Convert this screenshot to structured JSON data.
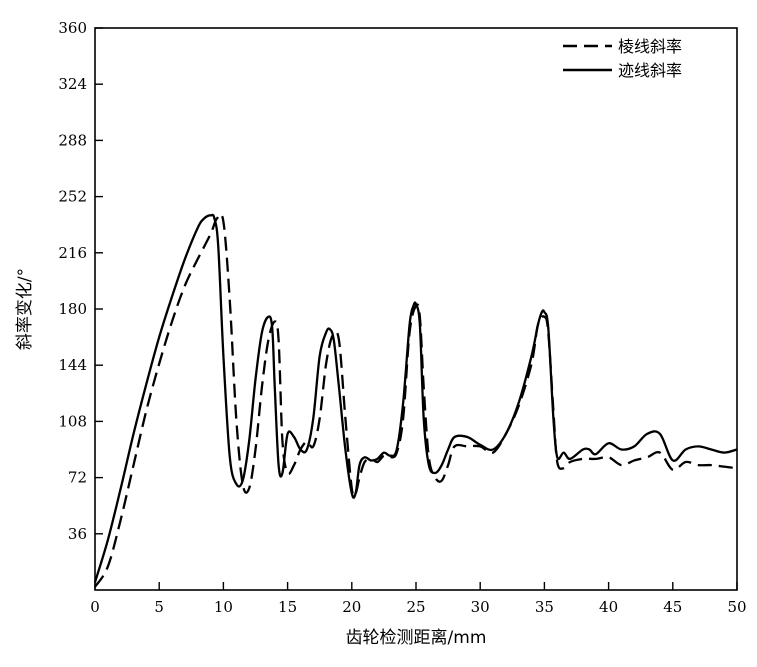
{
  "chart_data": {
    "type": "line",
    "xlabel": "齿轮检测距离/mm",
    "ylabel": "斜率变化/°",
    "xlim": [
      0,
      50
    ],
    "ylim": [
      0,
      360
    ],
    "xticks": [
      0,
      5,
      10,
      15,
      20,
      25,
      30,
      35,
      40,
      45,
      50
    ],
    "yticks": [
      36,
      72,
      108,
      144,
      180,
      216,
      252,
      288,
      324,
      360
    ],
    "grid": false,
    "legend_position": "top-right",
    "series": [
      {
        "name": "棱线斜率",
        "style": "dashed",
        "color": "#000000",
        "x": [
          0,
          1,
          2,
          3,
          4,
          5,
          6,
          7,
          8,
          9,
          9.5,
          10,
          10.5,
          11,
          11.5,
          12,
          12.5,
          13,
          13.5,
          14,
          14.3,
          14.6,
          15,
          15.5,
          16,
          16.5,
          17,
          17.5,
          18,
          18.5,
          19,
          19.5,
          20,
          20.3,
          20.6,
          21,
          21.5,
          22,
          22.5,
          23,
          23.5,
          24,
          24.5,
          25,
          25.3,
          25.6,
          26,
          26.5,
          27,
          27.5,
          28,
          29,
          30,
          31,
          32,
          33,
          34,
          34.5,
          35,
          35.3,
          35.7,
          36,
          36.5,
          37,
          38,
          39,
          40,
          41,
          42,
          43,
          44,
          45,
          46,
          47,
          48,
          49,
          50
        ],
        "values": [
          2,
          15,
          45,
          80,
          115,
          145,
          172,
          195,
          212,
          228,
          238,
          236,
          185,
          110,
          68,
          65,
          90,
          130,
          160,
          172,
          160,
          95,
          75,
          80,
          90,
          95,
          92,
          110,
          145,
          163,
          160,
          110,
          65,
          62,
          72,
          82,
          84,
          82,
          86,
          85,
          88,
          110,
          165,
          182,
          175,
          130,
          85,
          72,
          70,
          80,
          92,
          92,
          92,
          88,
          100,
          118,
          145,
          170,
          175,
          165,
          115,
          82,
          78,
          82,
          84,
          84,
          85,
          80,
          83,
          85,
          88,
          77,
          82,
          80,
          80,
          79,
          78
        ]
      },
      {
        "name": "迹线斜率",
        "style": "solid",
        "color": "#000000",
        "x": [
          0,
          1,
          2,
          3,
          4,
          5,
          6,
          7,
          8,
          8.5,
          9,
          9.3,
          9.6,
          10,
          10.5,
          11,
          11.5,
          12,
          12.5,
          13,
          13.5,
          13.8,
          14,
          14.3,
          14.6,
          15,
          15.5,
          16,
          16.5,
          17,
          17.5,
          18,
          18.3,
          18.6,
          19,
          19.5,
          20,
          20.3,
          20.6,
          21,
          21.5,
          22,
          22.5,
          23,
          23.5,
          24,
          24.5,
          24.8,
          25,
          25.3,
          25.6,
          26,
          26.5,
          27,
          27.5,
          28,
          29,
          30,
          31,
          32,
          33,
          34,
          34.5,
          34.8,
          35,
          35.3,
          35.7,
          36,
          36.5,
          37,
          38,
          38.5,
          39,
          40,
          41,
          42,
          43,
          44,
          45,
          46,
          47,
          48,
          49,
          50
        ],
        "values": [
          5,
          32,
          65,
          100,
          132,
          162,
          188,
          212,
          232,
          238,
          240,
          238,
          220,
          150,
          85,
          68,
          70,
          95,
          135,
          165,
          175,
          168,
          130,
          80,
          75,
          100,
          98,
          90,
          90,
          110,
          150,
          165,
          167,
          160,
          130,
          90,
          62,
          62,
          80,
          85,
          83,
          84,
          88,
          86,
          90,
          120,
          170,
          182,
          183,
          170,
          110,
          80,
          75,
          80,
          90,
          98,
          98,
          93,
          90,
          100,
          120,
          150,
          170,
          178,
          178,
          168,
          110,
          85,
          88,
          84,
          90,
          90,
          87,
          94,
          90,
          92,
          100,
          100,
          83,
          90,
          92,
          90,
          88,
          90
        ]
      }
    ]
  }
}
